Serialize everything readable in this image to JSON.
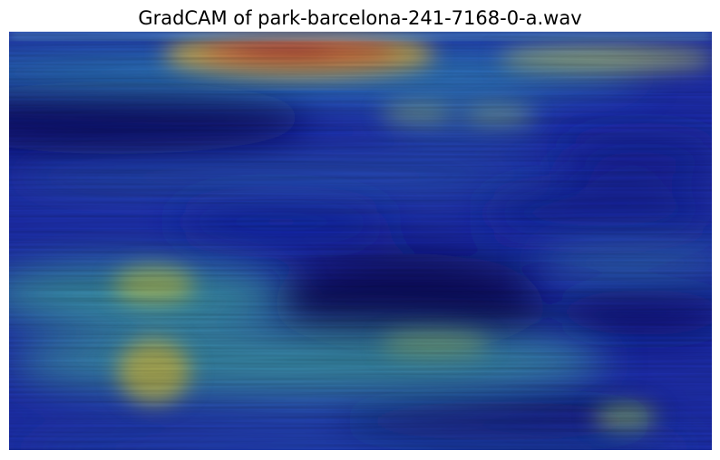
{
  "title": "GradCAM of park-barcelona-241-7168-0-a.wav",
  "heatmap": {
    "colormap": "jet",
    "base_color": "#1e2fb0"
  }
}
